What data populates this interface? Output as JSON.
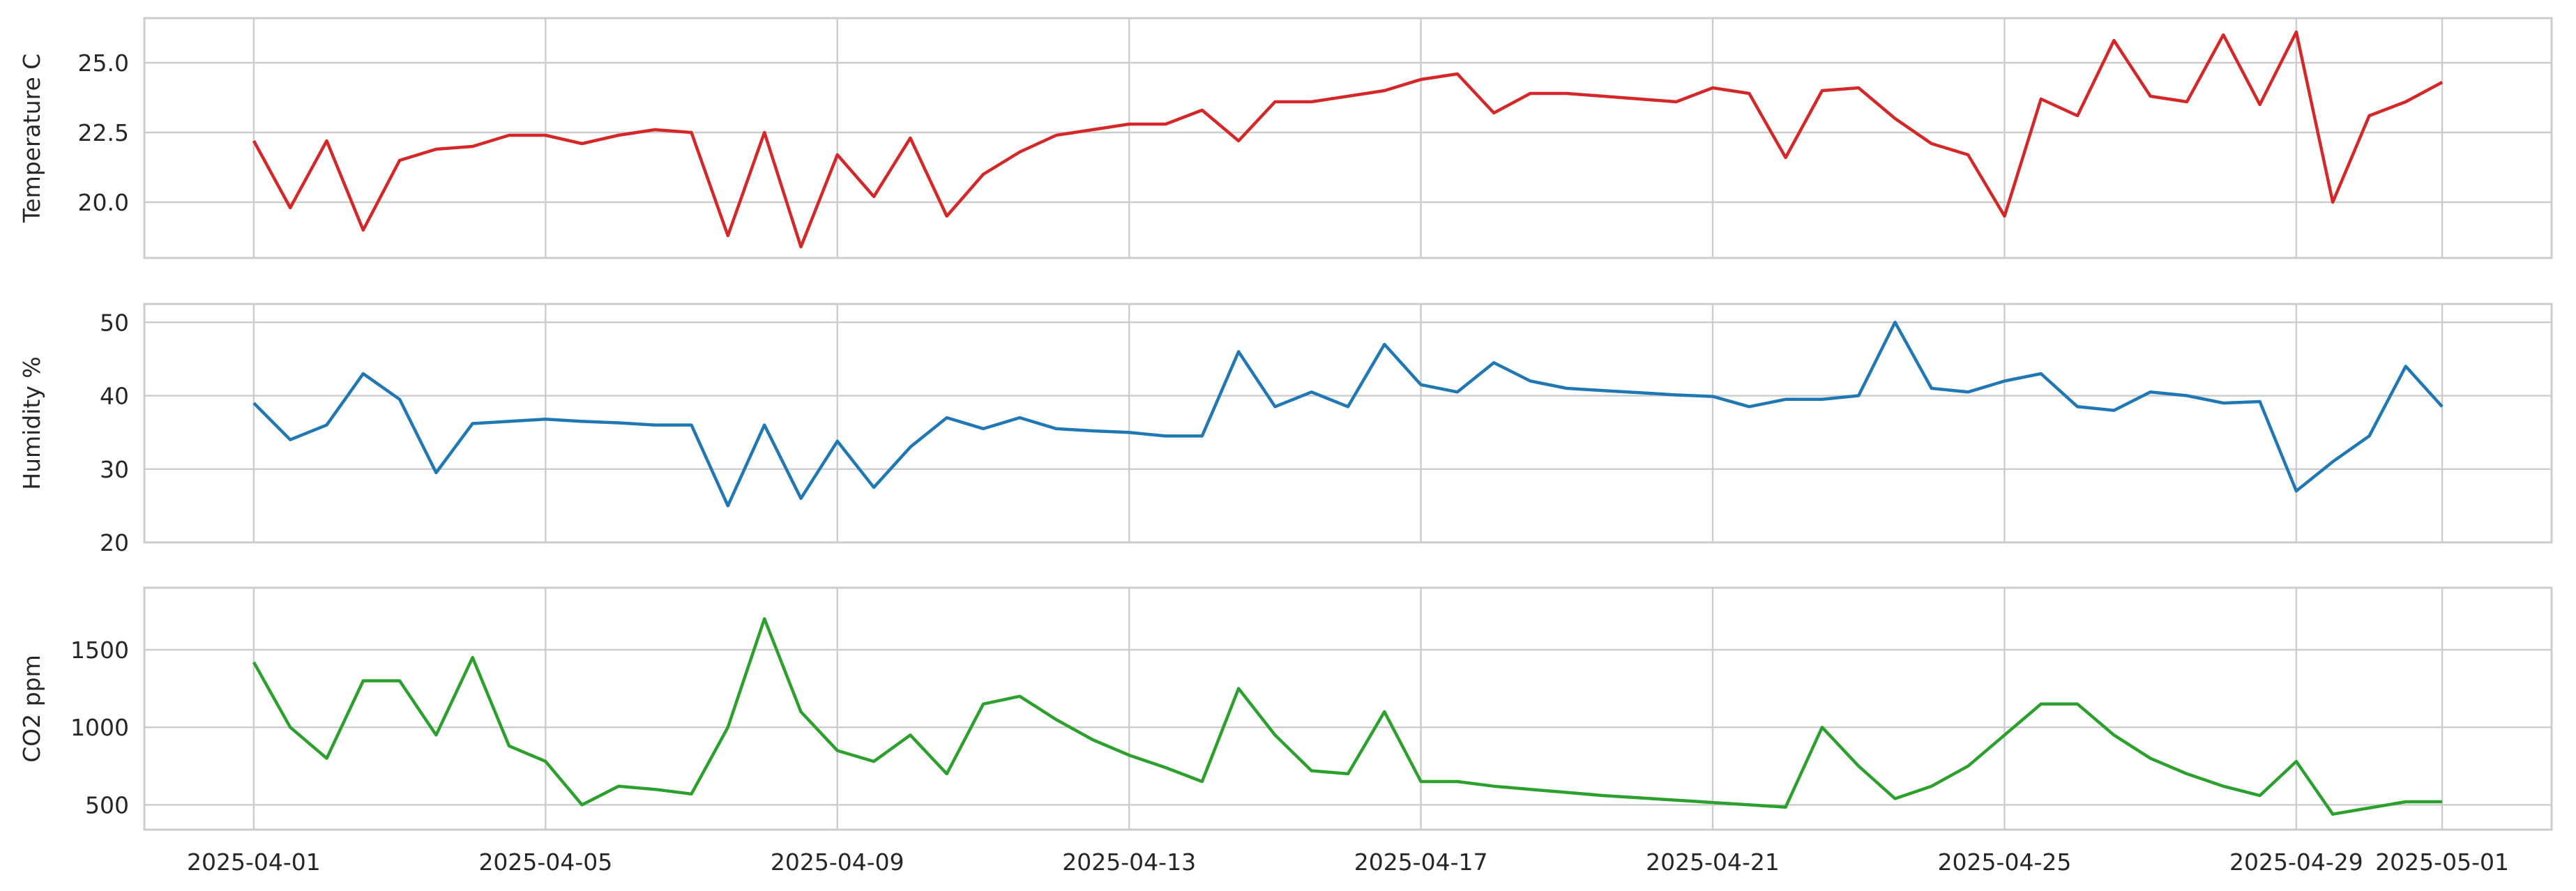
{
  "chart_data": [
    {
      "type": "line",
      "y_label": "Temperature C",
      "grid": true,
      "xtick_labels": false,
      "xlim": [
        "2025-03-30 12:00",
        "2025-05-02 12:00"
      ],
      "xticks": [
        "2025-04-01",
        "2025-04-05",
        "2025-04-09",
        "2025-04-13",
        "2025-04-17",
        "2025-04-21",
        "2025-04-25",
        "2025-04-29",
        "2025-05-01"
      ],
      "ylim": [
        18.0,
        26.6
      ],
      "yticks": [
        {
          "value": 20,
          "label": "20.0"
        },
        22.5,
        {
          "value": 25,
          "label": "25.0"
        }
      ],
      "x": [
        "2025-04-01 00:00",
        "2025-04-01 12:00",
        "2025-04-02 00:00",
        "2025-04-02 12:00",
        "2025-04-03 00:00",
        "2025-04-03 12:00",
        "2025-04-04 00:00",
        "2025-04-04 12:00",
        "2025-04-05 00:00",
        "2025-04-05 12:00",
        "2025-04-06 00:00",
        "2025-04-06 12:00",
        "2025-04-07 00:00",
        "2025-04-07 12:00",
        "2025-04-08 00:00",
        "2025-04-08 12:00",
        "2025-04-09 00:00",
        "2025-04-09 12:00",
        "2025-04-10 00:00",
        "2025-04-10 12:00",
        "2025-04-11 00:00",
        "2025-04-11 12:00",
        "2025-04-12 00:00",
        "2025-04-12 12:00",
        "2025-04-13 00:00",
        "2025-04-13 12:00",
        "2025-04-14 00:00",
        "2025-04-14 12:00",
        "2025-04-15 00:00",
        "2025-04-15 12:00",
        "2025-04-16 00:00",
        "2025-04-16 12:00",
        "2025-04-17 00:00",
        "2025-04-17 12:00",
        "2025-04-18 00:00",
        "2025-04-18 12:00",
        "2025-04-19 00:00",
        "2025-04-19 12:00",
        "2025-04-20 00:00",
        "2025-04-20 12:00",
        "2025-04-21 00:00",
        "2025-04-21 12:00",
        "2025-04-22 00:00",
        "2025-04-22 12:00",
        "2025-04-23 00:00",
        "2025-04-23 12:00",
        "2025-04-24 00:00",
        "2025-04-24 12:00",
        "2025-04-25 00:00",
        "2025-04-25 12:00",
        "2025-04-26 00:00",
        "2025-04-26 12:00",
        "2025-04-27 00:00",
        "2025-04-27 12:00",
        "2025-04-28 00:00",
        "2025-04-28 12:00",
        "2025-04-29 00:00",
        "2025-04-29 12:00",
        "2025-04-30 00:00",
        "2025-04-30 12:00",
        "2025-05-01 00:00"
      ],
      "series": [
        {
          "color": "#d62728",
          "values": [
            22.2,
            19.8,
            22.2,
            19.0,
            21.5,
            21.9,
            22.0,
            22.4,
            22.4,
            22.1,
            22.4,
            22.6,
            22.5,
            18.8,
            22.5,
            18.4,
            21.7,
            20.2,
            22.3,
            19.5,
            21.0,
            21.8,
            22.4,
            22.6,
            22.8,
            22.8,
            23.3,
            22.2,
            23.6,
            23.6,
            23.8,
            24.0,
            24.4,
            24.6,
            23.2,
            23.9,
            23.9,
            23.8,
            23.7,
            23.6,
            24.1,
            23.9,
            21.6,
            24.0,
            24.1,
            23.0,
            22.1,
            21.7,
            19.5,
            23.7,
            23.1,
            25.8,
            23.8,
            23.6,
            26.0,
            23.5,
            26.1,
            20.0,
            23.1,
            23.6,
            24.3
          ]
        }
      ]
    },
    {
      "type": "line",
      "y_label": "Humidity %",
      "grid": true,
      "xtick_labels": false,
      "xlim": [
        "2025-03-30 12:00",
        "2025-05-02 12:00"
      ],
      "xticks": [
        "2025-04-01",
        "2025-04-05",
        "2025-04-09",
        "2025-04-13",
        "2025-04-17",
        "2025-04-21",
        "2025-04-25",
        "2025-04-29",
        "2025-05-01"
      ],
      "ylim": [
        20,
        52.5
      ],
      "yticks": [
        20,
        30,
        40,
        50
      ],
      "x": [
        "2025-04-01 00:00",
        "2025-04-01 12:00",
        "2025-04-02 00:00",
        "2025-04-02 12:00",
        "2025-04-03 00:00",
        "2025-04-03 12:00",
        "2025-04-04 00:00",
        "2025-04-04 12:00",
        "2025-04-05 00:00",
        "2025-04-05 12:00",
        "2025-04-06 00:00",
        "2025-04-06 12:00",
        "2025-04-07 00:00",
        "2025-04-07 12:00",
        "2025-04-08 00:00",
        "2025-04-08 12:00",
        "2025-04-09 00:00",
        "2025-04-09 12:00",
        "2025-04-10 00:00",
        "2025-04-10 12:00",
        "2025-04-11 00:00",
        "2025-04-11 12:00",
        "2025-04-12 00:00",
        "2025-04-12 12:00",
        "2025-04-13 00:00",
        "2025-04-13 12:00",
        "2025-04-14 00:00",
        "2025-04-14 12:00",
        "2025-04-15 00:00",
        "2025-04-15 12:00",
        "2025-04-16 00:00",
        "2025-04-16 12:00",
        "2025-04-17 00:00",
        "2025-04-17 12:00",
        "2025-04-18 00:00",
        "2025-04-18 12:00",
        "2025-04-19 00:00",
        "2025-04-19 12:00",
        "2025-04-20 00:00",
        "2025-04-20 12:00",
        "2025-04-21 00:00",
        "2025-04-21 12:00",
        "2025-04-22 00:00",
        "2025-04-22 12:00",
        "2025-04-23 00:00",
        "2025-04-23 12:00",
        "2025-04-24 00:00",
        "2025-04-24 12:00",
        "2025-04-25 00:00",
        "2025-04-25 12:00",
        "2025-04-26 00:00",
        "2025-04-26 12:00",
        "2025-04-27 00:00",
        "2025-04-27 12:00",
        "2025-04-28 00:00",
        "2025-04-28 12:00",
        "2025-04-29 00:00",
        "2025-04-29 12:00",
        "2025-04-30 00:00",
        "2025-04-30 12:00",
        "2025-05-01 00:00"
      ],
      "series": [
        {
          "color": "#1f77b4",
          "values": [
            39,
            34,
            36,
            43,
            39.5,
            29.5,
            36.2,
            36.5,
            36.8,
            36.5,
            36.3,
            36.0,
            36.0,
            25,
            36.0,
            26,
            33.8,
            27.5,
            33,
            37,
            35.5,
            37,
            35.5,
            35.2,
            35.0,
            34.5,
            34.5,
            46,
            38.5,
            40.5,
            38.5,
            47,
            41.5,
            40.5,
            44.5,
            42,
            41,
            40.7,
            40.4,
            40.1,
            39.9,
            38.5,
            39.5,
            39.5,
            40,
            50,
            41,
            40.5,
            42,
            43,
            38.5,
            38.0,
            40.5,
            40.0,
            39.0,
            39.2,
            27,
            31,
            34.5,
            44,
            38.5
          ]
        }
      ]
    },
    {
      "type": "line",
      "y_label": "CO2 ppm",
      "grid": true,
      "xtick_labels": true,
      "xlim": [
        "2025-03-30 12:00",
        "2025-05-02 12:00"
      ],
      "xticks": [
        "2025-04-01",
        "2025-04-05",
        "2025-04-09",
        "2025-04-13",
        "2025-04-17",
        "2025-04-21",
        "2025-04-25",
        "2025-04-29",
        "2025-05-01"
      ],
      "ylim": [
        340,
        1900
      ],
      "yticks": [
        500,
        1000,
        1500
      ],
      "x": [
        "2025-04-01 00:00",
        "2025-04-01 12:00",
        "2025-04-02 00:00",
        "2025-04-02 12:00",
        "2025-04-03 00:00",
        "2025-04-03 12:00",
        "2025-04-04 00:00",
        "2025-04-04 12:00",
        "2025-04-05 00:00",
        "2025-04-05 12:00",
        "2025-04-06 00:00",
        "2025-04-06 12:00",
        "2025-04-07 00:00",
        "2025-04-07 12:00",
        "2025-04-08 00:00",
        "2025-04-08 12:00",
        "2025-04-09 00:00",
        "2025-04-09 12:00",
        "2025-04-10 00:00",
        "2025-04-10 12:00",
        "2025-04-11 00:00",
        "2025-04-11 12:00",
        "2025-04-12 00:00",
        "2025-04-12 12:00",
        "2025-04-13 00:00",
        "2025-04-13 12:00",
        "2025-04-14 00:00",
        "2025-04-14 12:00",
        "2025-04-15 00:00",
        "2025-04-15 12:00",
        "2025-04-16 00:00",
        "2025-04-16 12:00",
        "2025-04-17 00:00",
        "2025-04-17 12:00",
        "2025-04-18 00:00",
        "2025-04-18 12:00",
        "2025-04-19 00:00",
        "2025-04-19 12:00",
        "2025-04-20 00:00",
        "2025-04-20 12:00",
        "2025-04-21 00:00",
        "2025-04-21 12:00",
        "2025-04-22 00:00",
        "2025-04-22 12:00",
        "2025-04-23 00:00",
        "2025-04-23 12:00",
        "2025-04-24 00:00",
        "2025-04-24 12:00",
        "2025-04-25 00:00",
        "2025-04-25 12:00",
        "2025-04-26 00:00",
        "2025-04-26 12:00",
        "2025-04-27 00:00",
        "2025-04-27 12:00",
        "2025-04-28 00:00",
        "2025-04-28 12:00",
        "2025-04-29 00:00",
        "2025-04-29 12:00",
        "2025-04-30 00:00",
        "2025-04-30 12:00",
        "2025-05-01 00:00"
      ],
      "series": [
        {
          "color": "#2ca02c",
          "values": [
            1420,
            1000,
            800,
            1300,
            1300,
            950,
            1450,
            880,
            780,
            500,
            620,
            600,
            570,
            1000,
            1700,
            1100,
            850,
            780,
            950,
            700,
            1150,
            1200,
            1050,
            920,
            820,
            740,
            650,
            1250,
            950,
            720,
            700,
            1100,
            650,
            650,
            620,
            600,
            580,
            560,
            545,
            530,
            515,
            500,
            485,
            1000,
            750,
            540,
            620,
            750,
            950,
            1150,
            1150,
            950,
            800,
            700,
            620,
            560,
            780,
            440,
            480,
            520,
            520
          ]
        }
      ]
    }
  ]
}
